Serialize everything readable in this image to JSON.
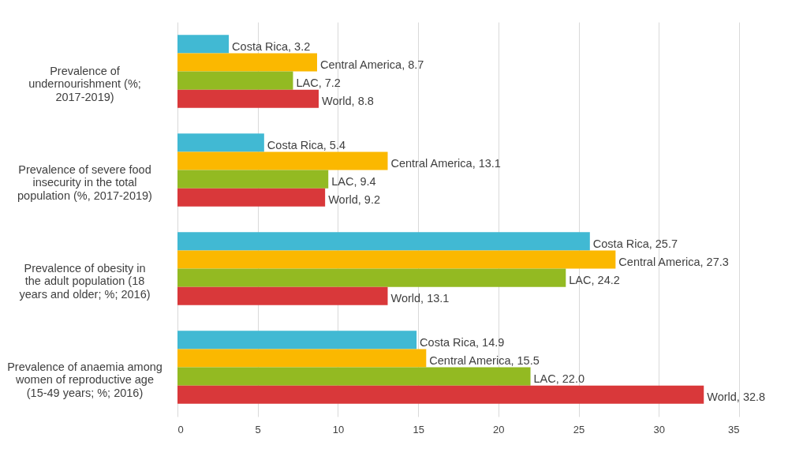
{
  "chart_data": {
    "type": "bar",
    "orientation": "horizontal",
    "categories": [
      "Prevalence of undernourishment (%; 2017-2019)",
      "Prevalence of severe food insecurity in the total population (%, 2017-2019)",
      "Prevalence of obesity in the adult population (18 years and older; %; 2016)",
      "Prevalence of anaemia among women of reproductive age (15-49 years; %; 2016)"
    ],
    "series": [
      {
        "name": "Costa Rica",
        "color": "#41b9d3",
        "values": [
          3.2,
          5.4,
          25.7,
          14.9
        ],
        "value_labels": [
          ",  3.2",
          ",  5.4",
          ",  25.7",
          ",  14.9"
        ]
      },
      {
        "name": "Central America",
        "color": "#fbb800",
        "values": [
          8.7,
          13.1,
          27.3,
          15.5
        ],
        "value_labels": [
          ",  8.7",
          ",  13.1",
          ",  27.3",
          ",  15.5"
        ]
      },
      {
        "name": "LAC",
        "color": "#93ba22",
        "values": [
          7.2,
          9.4,
          24.2,
          22.0
        ],
        "value_labels": [
          ",  7.2",
          ",  9.4",
          ",  24.2",
          ",  22.0"
        ]
      },
      {
        "name": "World",
        "color": "#d9383a",
        "values": [
          8.8,
          9.2,
          13.1,
          32.8
        ],
        "value_labels": [
          ",  8.8",
          ",  9.2",
          ",  13.1",
          ",  32.8"
        ]
      }
    ],
    "xlim": [
      0,
      35
    ],
    "xticks": [
      0,
      5,
      10,
      15,
      20,
      25,
      30,
      35
    ],
    "grid": "x",
    "legend": false
  }
}
